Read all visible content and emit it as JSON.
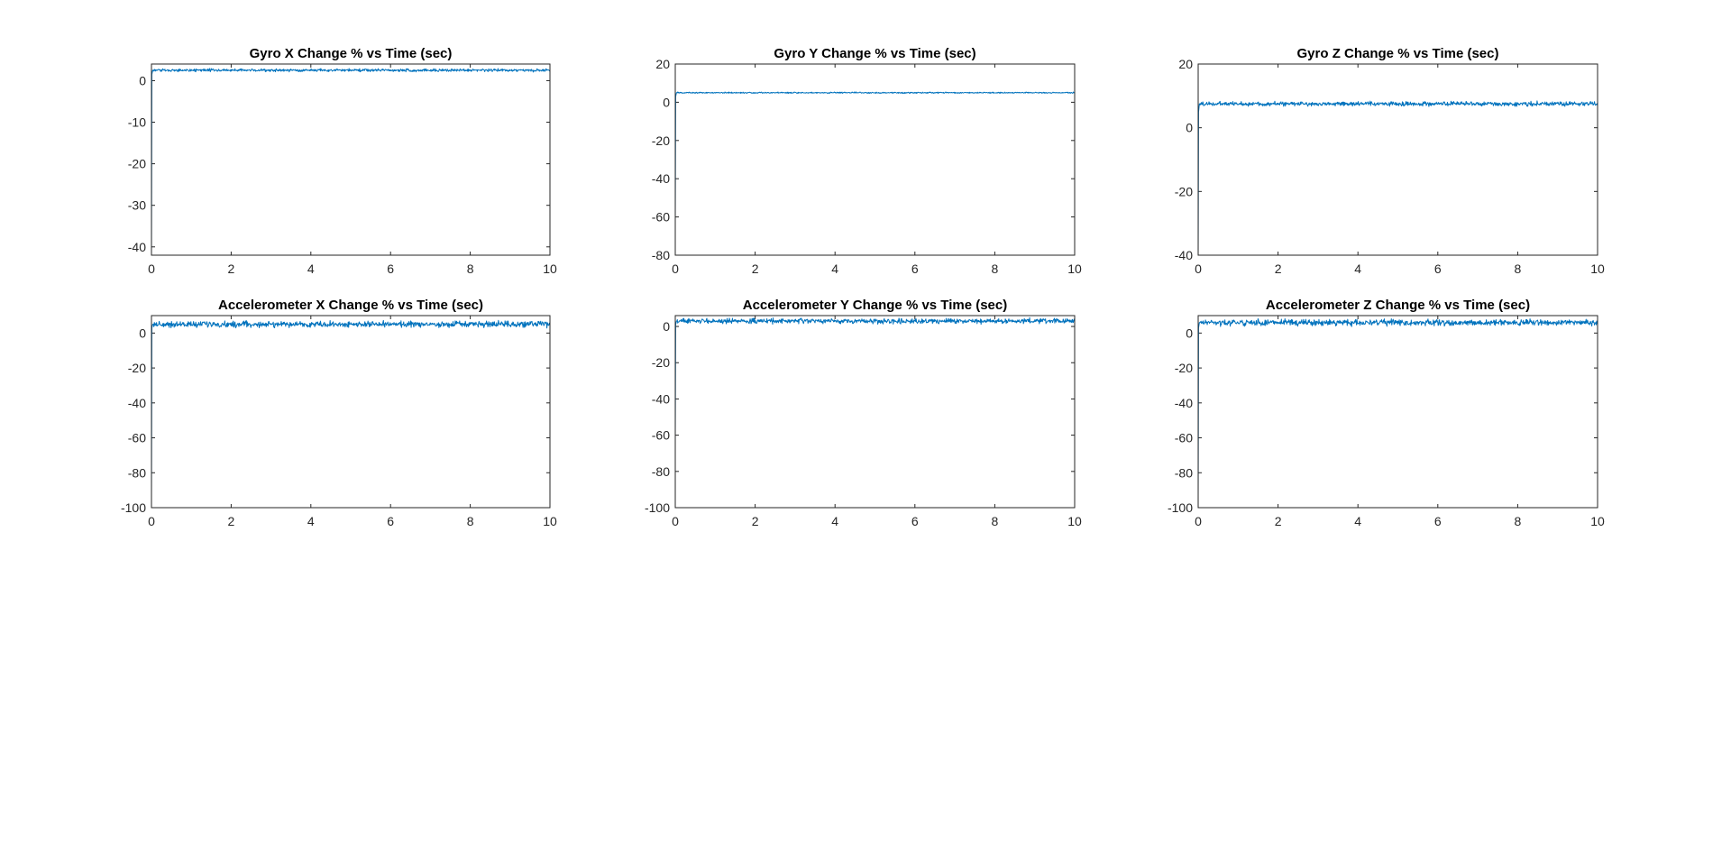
{
  "figure": {
    "background": "#ffffff",
    "axis_color": "#262626",
    "line_color": "#0072BD"
  },
  "chart_data": [
    {
      "type": "line",
      "title": "Gyro X Change % vs Time (sec)",
      "xlabel": "",
      "ylabel": "",
      "xlim": [
        0,
        10
      ],
      "ylim": [
        -42,
        4
      ],
      "xticks": [
        0,
        2,
        4,
        6,
        8,
        10
      ],
      "yticks": [
        -40,
        -30,
        -20,
        -10,
        0
      ],
      "grid": false,
      "series": [
        {
          "color": "#0072BD",
          "x": [
            0,
            0.01,
            0.03,
            0.05,
            10
          ],
          "y": [
            -42,
            1.5,
            2.5,
            2.5,
            2.5
          ],
          "noise_amplitude": 0.5
        }
      ]
    },
    {
      "type": "line",
      "title": "Gyro Y Change % vs Time (sec)",
      "xlabel": "",
      "ylabel": "",
      "xlim": [
        0,
        10
      ],
      "ylim": [
        -80,
        20
      ],
      "xticks": [
        0,
        2,
        4,
        6,
        8,
        10
      ],
      "yticks": [
        -80,
        -60,
        -40,
        -20,
        0,
        20
      ],
      "grid": false,
      "series": [
        {
          "color": "#0072BD",
          "x": [
            0,
            0.01,
            0.03,
            0.05,
            10
          ],
          "y": [
            -60,
            3,
            5,
            5,
            5
          ],
          "noise_amplitude": 0.5
        }
      ]
    },
    {
      "type": "line",
      "title": "Gyro Z Change % vs Time (sec)",
      "xlabel": "",
      "ylabel": "",
      "xlim": [
        0,
        10
      ],
      "ylim": [
        -40,
        20
      ],
      "xticks": [
        0,
        2,
        4,
        6,
        8,
        10
      ],
      "yticks": [
        -40,
        -20,
        0,
        20
      ],
      "grid": false,
      "series": [
        {
          "color": "#0072BD",
          "x": [
            0,
            0.01,
            0.03,
            0.05,
            10
          ],
          "y": [
            -40,
            5,
            7.5,
            7.5,
            7.5
          ],
          "noise_amplitude": 1
        }
      ]
    },
    {
      "type": "line",
      "title": "Accelerometer X Change % vs Time (sec)",
      "xlabel": "",
      "ylabel": "",
      "xlim": [
        0,
        10
      ],
      "ylim": [
        -100,
        10
      ],
      "xticks": [
        0,
        2,
        4,
        6,
        8,
        10
      ],
      "yticks": [
        -100,
        -80,
        -60,
        -40,
        -20,
        0
      ],
      "grid": false,
      "series": [
        {
          "color": "#0072BD",
          "x": [
            0,
            0.01,
            0.03,
            0.05,
            10
          ],
          "y": [
            -95,
            3,
            5,
            5,
            5
          ],
          "noise_amplitude": 2.5
        }
      ]
    },
    {
      "type": "line",
      "title": "Accelerometer Y Change % vs Time (sec)",
      "xlabel": "",
      "ylabel": "",
      "xlim": [
        0,
        10
      ],
      "ylim": [
        -100,
        6
      ],
      "xticks": [
        0,
        2,
        4,
        6,
        8,
        10
      ],
      "yticks": [
        -100,
        -80,
        -60,
        -40,
        -20,
        0
      ],
      "grid": false,
      "series": [
        {
          "color": "#0072BD",
          "x": [
            0,
            0.01,
            0.03,
            0.05,
            10
          ],
          "y": [
            -60,
            1,
            3,
            3,
            3
          ],
          "noise_amplitude": 2
        }
      ]
    },
    {
      "type": "line",
      "title": "Accelerometer Z Change % vs Time (sec)",
      "xlabel": "",
      "ylabel": "",
      "xlim": [
        0,
        10
      ],
      "ylim": [
        -100,
        10
      ],
      "xticks": [
        0,
        2,
        4,
        6,
        8,
        10
      ],
      "yticks": [
        -100,
        -80,
        -60,
        -40,
        -20,
        0
      ],
      "grid": false,
      "series": [
        {
          "color": "#0072BD",
          "x": [
            0,
            0.01,
            0.03,
            0.05,
            10
          ],
          "y": [
            -95,
            3,
            6,
            6,
            6
          ],
          "noise_amplitude": 2.5
        }
      ]
    }
  ]
}
